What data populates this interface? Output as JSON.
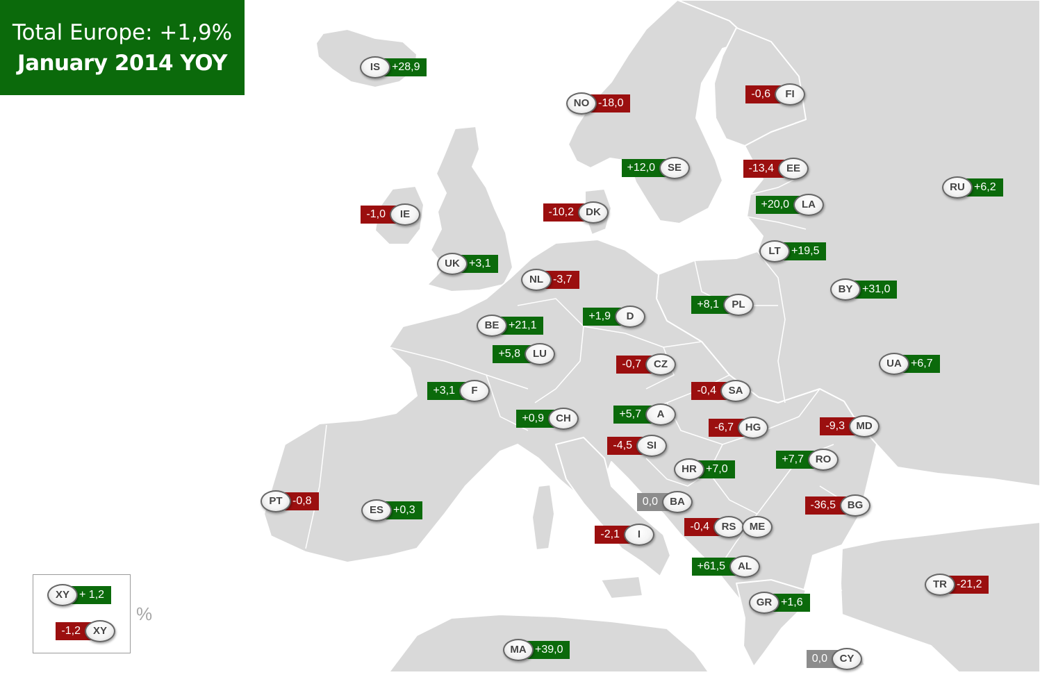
{
  "title": {
    "line1": "Total Europe: +1,9%",
    "line2": "January 2014 YOY"
  },
  "colors": {
    "positive": "#0b6a0b",
    "negative": "#9b0f0f",
    "zero": "#8c8c8c",
    "land": "#d9d9d9"
  },
  "markers": [
    {
      "code": "IS",
      "value": "+28,9",
      "sign": "pos"
    },
    {
      "code": "NO",
      "value": "-18,0",
      "sign": "neg"
    },
    {
      "code": "FI",
      "value": "-0,6",
      "sign": "neg"
    },
    {
      "code": "SE",
      "value": "+12,0",
      "sign": "pos"
    },
    {
      "code": "EE",
      "value": "-13,4",
      "sign": "neg"
    },
    {
      "code": "RU",
      "value": "+6,2",
      "sign": "pos"
    },
    {
      "code": "IE",
      "value": "-1,0",
      "sign": "neg"
    },
    {
      "code": "DK",
      "value": "-10,2",
      "sign": "neg"
    },
    {
      "code": "LA",
      "value": "+20,0",
      "sign": "pos"
    },
    {
      "code": "LT",
      "value": "+19,5",
      "sign": "pos"
    },
    {
      "code": "UK",
      "value": "+3,1",
      "sign": "pos"
    },
    {
      "code": "NL",
      "value": "-3,7",
      "sign": "neg"
    },
    {
      "code": "BY",
      "value": "+31,0",
      "sign": "pos"
    },
    {
      "code": "PL",
      "value": "+8,1",
      "sign": "pos"
    },
    {
      "code": "D",
      "value": "+1,9",
      "sign": "pos"
    },
    {
      "code": "BE",
      "value": "+21,1",
      "sign": "pos"
    },
    {
      "code": "LU",
      "value": "+5,8",
      "sign": "pos"
    },
    {
      "code": "CZ",
      "value": "-0,7",
      "sign": "neg"
    },
    {
      "code": "UA",
      "value": "+6,7",
      "sign": "pos"
    },
    {
      "code": "SA",
      "value": "-0,4",
      "sign": "neg"
    },
    {
      "code": "F",
      "value": "+3,1",
      "sign": "pos"
    },
    {
      "code": "CH",
      "value": "+0,9",
      "sign": "pos"
    },
    {
      "code": "A",
      "value": "+5,7",
      "sign": "pos"
    },
    {
      "code": "HG",
      "value": "-6,7",
      "sign": "neg"
    },
    {
      "code": "MD",
      "value": "-9,3",
      "sign": "neg"
    },
    {
      "code": "SI",
      "value": "-4,5",
      "sign": "neg"
    },
    {
      "code": "RO",
      "value": "+7,7",
      "sign": "pos"
    },
    {
      "code": "HR",
      "value": "+7,0",
      "sign": "pos"
    },
    {
      "code": "PT",
      "value": "-0,8",
      "sign": "neg"
    },
    {
      "code": "ES",
      "value": "+0,3",
      "sign": "pos"
    },
    {
      "code": "BA",
      "value": "0,0",
      "sign": "zero"
    },
    {
      "code": "BG",
      "value": "-36,5",
      "sign": "neg"
    },
    {
      "code": "I",
      "value": "-2,1",
      "sign": "neg"
    },
    {
      "code": "RS",
      "value": "-0,4",
      "sign": "neg"
    },
    {
      "code": "ME",
      "value": "",
      "sign": "none"
    },
    {
      "code": "AL",
      "value": "+61,5",
      "sign": "pos"
    },
    {
      "code": "TR",
      "value": "-21,2",
      "sign": "neg"
    },
    {
      "code": "GR",
      "value": "+1,6",
      "sign": "pos"
    },
    {
      "code": "MA",
      "value": "+39,0",
      "sign": "pos"
    },
    {
      "code": "CY",
      "value": "0,0",
      "sign": "zero"
    }
  ],
  "legend": {
    "positive": {
      "code": "XY",
      "value": "+ 1,2"
    },
    "negative": {
      "code": "XY",
      "value": "-1,2"
    },
    "unit": "%"
  }
}
